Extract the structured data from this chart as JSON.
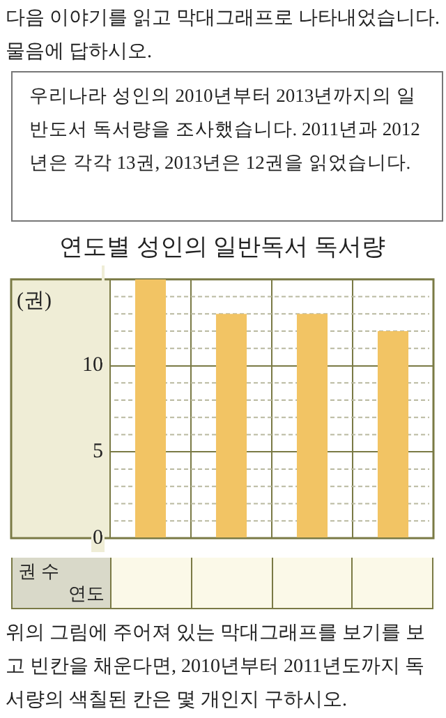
{
  "chart_data": {
    "type": "bar",
    "title": "연도별 성인의 일반독서 독서량",
    "ylabel": "(권)",
    "categories": [
      null,
      null,
      null,
      null
    ],
    "values": [
      15,
      13,
      13,
      12
    ],
    "color": "#f2c464",
    "ylim": [
      0,
      15
    ],
    "yticks": [
      0,
      {
        "value": 1,
        "label": null
      },
      {
        "value": 2,
        "label": null
      },
      {
        "value": 3,
        "label": null
      },
      {
        "value": 4,
        "label": null
      },
      5,
      {
        "value": 6,
        "label": null
      },
      {
        "value": 7,
        "label": null
      },
      {
        "value": 8,
        "label": null
      },
      {
        "value": 9,
        "label": null
      },
      10,
      {
        "value": 11,
        "label": null
      },
      {
        "value": 12,
        "label": null
      },
      {
        "value": 13,
        "label": null
      },
      {
        "value": 14,
        "label": null
      },
      {
        "value": 15,
        "label": null
      }
    ],
    "grid": true,
    "legend": false,
    "tick_labels": "y",
    "annotations": [
      "다음 이야기를 읽고 막대그래프로 나타내었습니다. 물음에 답하시오.",
      "우리나라 성인의 2010년부터 2013년까지의 일반도서 독서량을 조사했습니다. 2011년과 2012년은 각각 13권, 2013년은 12권을 읽었습니다.",
      "권 수",
      "연도",
      "위의 그림에 주어져 있는 막대그래프를 보기를 보고 빈칸을 채운다면, 2010년부터 2011년도까지 독서량의 색칠된 칸은 몇 개인지 구하시오."
    ]
  }
}
